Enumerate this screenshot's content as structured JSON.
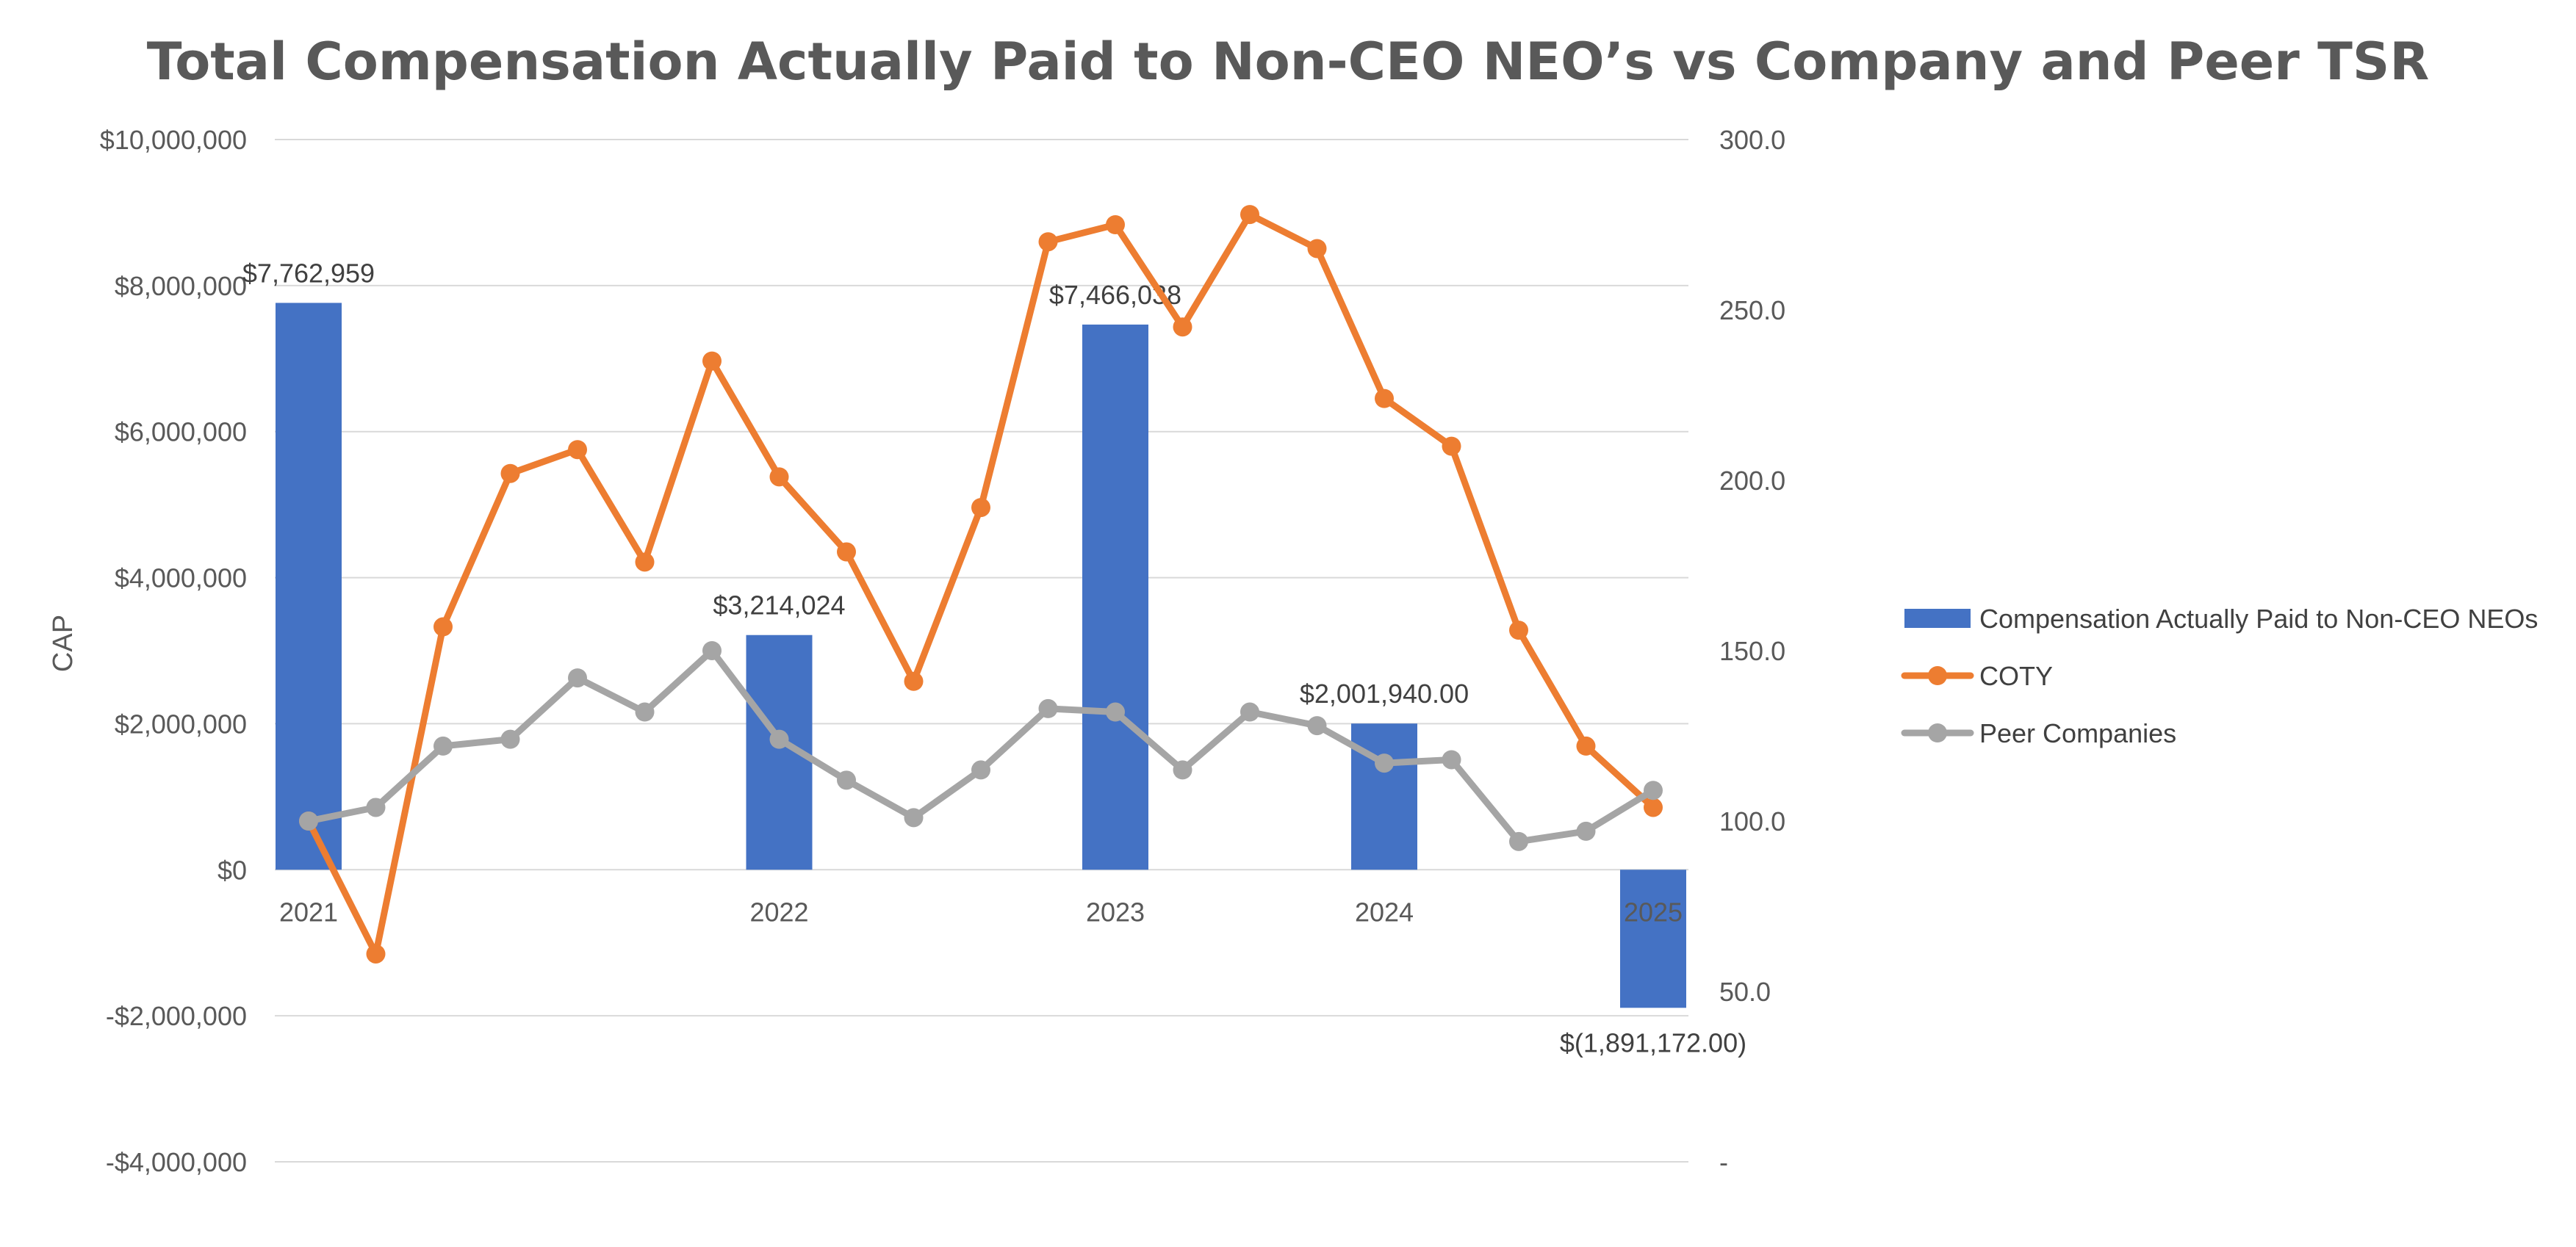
{
  "chart_data": {
    "type": "bar+line",
    "title": "Total Compensation Actually Paid to Non-CEO NEO’s vs Company and Peer TSR",
    "ylabel": "CAP",
    "y_left": {
      "min": -4000000,
      "max": 10000000,
      "ticks": [
        10000000,
        8000000,
        6000000,
        4000000,
        2000000,
        0,
        -2000000,
        -4000000
      ],
      "tick_labels": [
        "$10,000,000",
        "$8,000,000",
        "$6,000,000",
        "$4,000,000",
        "$2,000,000",
        "$0",
        "-$2,000,000",
        "-$4,000,000"
      ]
    },
    "y_right": {
      "min": 0,
      "max": 300,
      "ticks": [
        300,
        250,
        200,
        150,
        100,
        50,
        0
      ],
      "tick_labels": [
        "300.0",
        "250.0",
        "200.0",
        "150.0",
        "100.0",
        "50.0",
        "-"
      ]
    },
    "x_labels": [
      {
        "label": "2021",
        "index": 0
      },
      {
        "label": "2022",
        "index": 7
      },
      {
        "label": "2023",
        "index": 12
      },
      {
        "label": "2024",
        "index": 16
      },
      {
        "label": "2025",
        "index": 20
      }
    ],
    "bars": {
      "name": "Compensation Actually Paid to Non-CEO NEOs",
      "color": "#4472c4",
      "points": [
        {
          "index": 0,
          "value": 7762959,
          "label": "$7,762,959"
        },
        {
          "index": 7,
          "value": 3214024,
          "label": "$3,214,024"
        },
        {
          "index": 12,
          "value": 7466038,
          "label": "$7,466,038"
        },
        {
          "index": 16,
          "value": 2001940,
          "label": "$2,001,940.00"
        },
        {
          "index": 20,
          "value": -1891172,
          "label": "$(1,891,172.00)"
        }
      ]
    },
    "series": [
      {
        "name": "COTY",
        "color": "#ed7d31",
        "values": [
          100,
          61,
          157,
          202,
          209,
          176,
          235,
          201,
          179,
          141,
          192,
          270,
          275,
          245,
          278,
          268,
          224,
          210,
          156,
          122,
          104
        ]
      },
      {
        "name": "Peer Companies",
        "color": "#a5a5a5",
        "values": [
          100,
          104,
          122,
          124,
          142,
          132,
          150,
          124,
          112,
          101,
          115,
          133,
          132,
          115,
          132,
          128,
          117,
          118,
          94,
          97,
          109
        ]
      }
    ]
  }
}
